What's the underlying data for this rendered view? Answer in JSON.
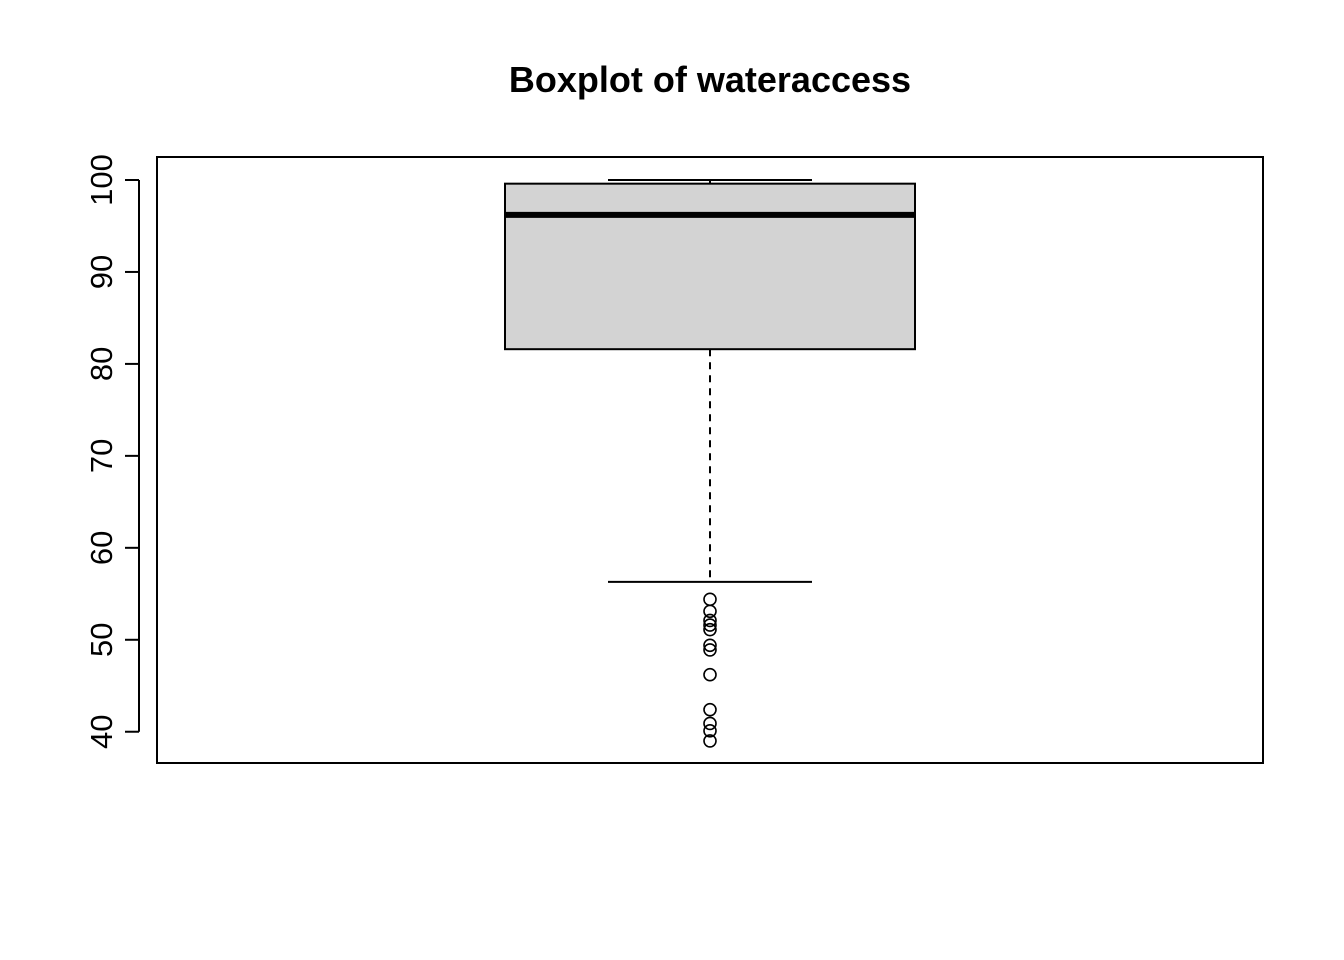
{
  "chart_data": {
    "type": "boxplot",
    "title": "Boxplot of wateraccess",
    "xlabel": "",
    "ylabel": "",
    "ylim": [
      36.6,
      102.5
    ],
    "yticks": [
      40,
      50,
      60,
      70,
      80,
      90,
      100
    ],
    "ytick_labels": [
      "40",
      "50",
      "60",
      "70",
      "80",
      "90",
      "100"
    ],
    "grid": false,
    "box": {
      "whisker_low": 56.3,
      "q1": 81.6,
      "median": 96.2,
      "q3": 99.6,
      "whisker_high": 100.0,
      "outliers": [
        54.4,
        53.1,
        52.1,
        51.6,
        51.1,
        49.4,
        48.9,
        46.2,
        42.4,
        40.9,
        40.1,
        39.0
      ],
      "fill_color": "#d3d3d3",
      "line_color": "#000000"
    }
  }
}
